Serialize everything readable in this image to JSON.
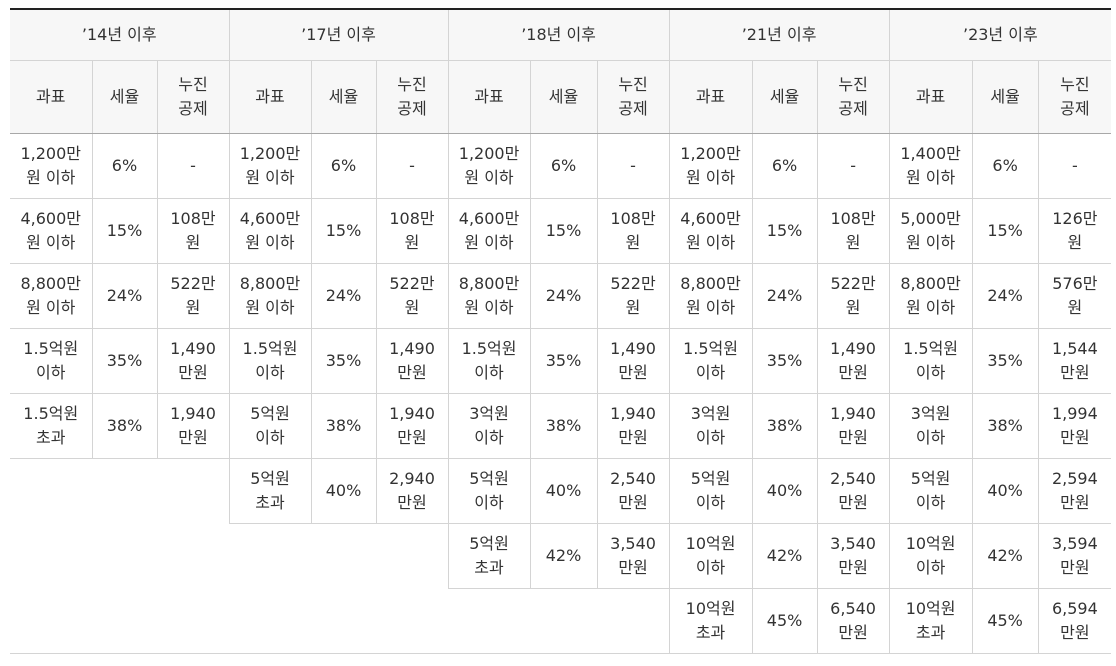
{
  "periods": [
    {
      "label": "’14년 이후"
    },
    {
      "label": "’17년 이후"
    },
    {
      "label": "’18년 이후"
    },
    {
      "label": "’21년 이후"
    },
    {
      "label": "’23년 이후"
    }
  ],
  "subheaders": {
    "base": "과표",
    "rate": "세율",
    "deduction": "누진\n공제"
  },
  "columns": [
    {
      "rows": [
        {
          "base": "1,200만\n원 이하",
          "rate": "6%",
          "deduction": "-"
        },
        {
          "base": "4,600만\n원 이하",
          "rate": "15%",
          "deduction": "108만\n원"
        },
        {
          "base": "8,800만\n원 이하",
          "rate": "24%",
          "deduction": "522만\n원"
        },
        {
          "base": "1.5억원\n이하",
          "rate": "35%",
          "deduction": "1,490\n만원"
        },
        {
          "base": "1.5억원\n초과",
          "rate": "38%",
          "deduction": "1,940\n만원"
        }
      ]
    },
    {
      "rows": [
        {
          "base": "1,200만\n원 이하",
          "rate": "6%",
          "deduction": "-"
        },
        {
          "base": "4,600만\n원 이하",
          "rate": "15%",
          "deduction": "108만\n원"
        },
        {
          "base": "8,800만\n원 이하",
          "rate": "24%",
          "deduction": "522만\n원"
        },
        {
          "base": "1.5억원\n이하",
          "rate": "35%",
          "deduction": "1,490\n만원"
        },
        {
          "base": "5억원\n이하",
          "rate": "38%",
          "deduction": "1,940\n만원"
        },
        {
          "base": "5억원\n초과",
          "rate": "40%",
          "deduction": "2,940\n만원"
        }
      ]
    },
    {
      "rows": [
        {
          "base": "1,200만\n원 이하",
          "rate": "6%",
          "deduction": "-"
        },
        {
          "base": "4,600만\n원 이하",
          "rate": "15%",
          "deduction": "108만\n원"
        },
        {
          "base": "8,800만\n원 이하",
          "rate": "24%",
          "deduction": "522만\n원"
        },
        {
          "base": "1.5억원\n이하",
          "rate": "35%",
          "deduction": "1,490\n만원"
        },
        {
          "base": "3억원\n이하",
          "rate": "38%",
          "deduction": "1,940\n만원"
        },
        {
          "base": "5억원\n이하",
          "rate": "40%",
          "deduction": "2,540\n만원"
        },
        {
          "base": "5억원\n초과",
          "rate": "42%",
          "deduction": "3,540\n만원"
        }
      ]
    },
    {
      "rows": [
        {
          "base": "1,200만\n원 이하",
          "rate": "6%",
          "deduction": "-"
        },
        {
          "base": "4,600만\n원 이하",
          "rate": "15%",
          "deduction": "108만\n원"
        },
        {
          "base": "8,800만\n원 이하",
          "rate": "24%",
          "deduction": "522만\n원"
        },
        {
          "base": "1.5억원\n이하",
          "rate": "35%",
          "deduction": "1,490\n만원"
        },
        {
          "base": "3억원\n이하",
          "rate": "38%",
          "deduction": "1,940\n만원"
        },
        {
          "base": "5억원\n이하",
          "rate": "40%",
          "deduction": "2,540\n만원"
        },
        {
          "base": "10억원\n이하",
          "rate": "42%",
          "deduction": "3,540\n만원"
        },
        {
          "base": "10억원\n초과",
          "rate": "45%",
          "deduction": "6,540\n만원"
        }
      ]
    },
    {
      "rows": [
        {
          "base": "1,400만\n원 이하",
          "rate": "6%",
          "deduction": "-"
        },
        {
          "base": "5,000만\n원 이하",
          "rate": "15%",
          "deduction": "126만\n원"
        },
        {
          "base": "8,800만\n원 이하",
          "rate": "24%",
          "deduction": "576만\n원"
        },
        {
          "base": "1.5억원\n이하",
          "rate": "35%",
          "deduction": "1,544\n만원"
        },
        {
          "base": "3억원\n이하",
          "rate": "38%",
          "deduction": "1,994\n만원"
        },
        {
          "base": "5억원\n이하",
          "rate": "40%",
          "deduction": "2,594\n만원"
        },
        {
          "base": "10억원\n이하",
          "rate": "42%",
          "deduction": "3,594\n만원"
        },
        {
          "base": "10억원\n초과",
          "rate": "45%",
          "deduction": "6,594\n만원"
        }
      ]
    }
  ]
}
